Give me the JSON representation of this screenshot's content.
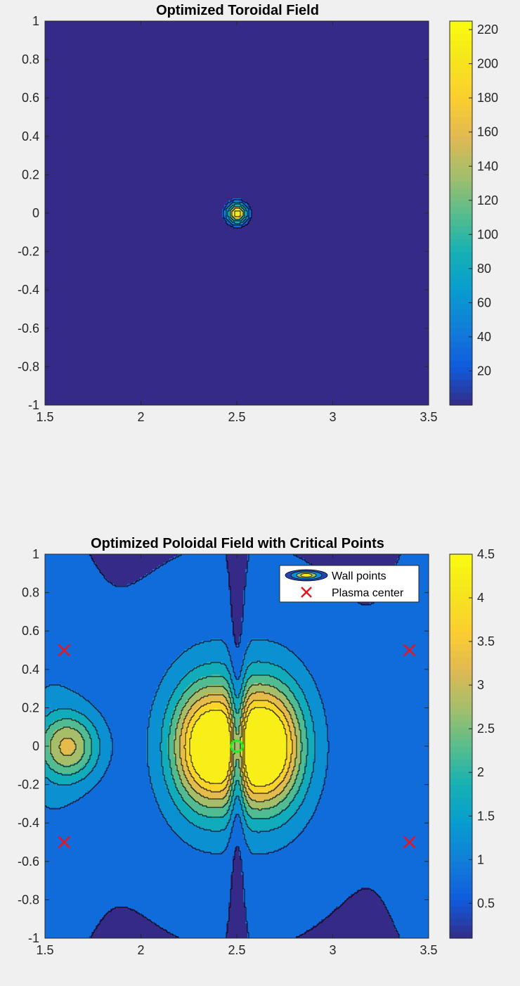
{
  "colors": {
    "background": "#f0f0f0",
    "plasma_marker": "#e8141e",
    "critical_point": "#22ee22",
    "contour_line": "#000000"
  },
  "chart_data": [
    {
      "type": "contour",
      "title": "Optimized Toroidal Field",
      "xlim": [
        1.5,
        3.5
      ],
      "ylim": [
        -1,
        1
      ],
      "x_ticks": [
        1.5,
        2,
        2.5,
        3,
        3.5
      ],
      "y_ticks": [
        -1,
        -0.8,
        -0.6,
        -0.4,
        -0.2,
        0,
        0.2,
        0.4,
        0.6,
        0.8,
        1
      ],
      "x_tick_labels": [
        "1.5",
        "2",
        "2.5",
        "3",
        "3.5"
      ],
      "y_tick_labels": [
        "-1",
        "-0.8",
        "-0.6",
        "-0.4",
        "-0.2",
        "0",
        "0.2",
        "0.4",
        "0.6",
        "0.8",
        "1"
      ],
      "colorbar": {
        "range": [
          0,
          225
        ],
        "ticks": [
          20,
          40,
          60,
          80,
          100,
          120,
          140,
          160,
          180,
          200,
          220
        ],
        "tick_labels": [
          "20",
          "40",
          "60",
          "80",
          "100",
          "120",
          "140",
          "160",
          "180",
          "200",
          "220"
        ]
      },
      "peak": {
        "x": 2.5,
        "y": 0,
        "value": 220
      },
      "colormap": "parula",
      "grid": false
    },
    {
      "type": "contour",
      "title": "Optimized Poloidal Field with Critical Points",
      "xlim": [
        1.5,
        3.5
      ],
      "ylim": [
        -1,
        1
      ],
      "x_ticks": [
        1.5,
        2,
        2.5,
        3,
        3.5
      ],
      "y_ticks": [
        -1,
        -0.8,
        -0.6,
        -0.4,
        -0.2,
        0,
        0.2,
        0.4,
        0.6,
        0.8,
        1
      ],
      "x_tick_labels": [
        "1.5",
        "2",
        "2.5",
        "3",
        "3.5"
      ],
      "y_tick_labels": [
        "-1",
        "-0.8",
        "-0.6",
        "-0.4",
        "-0.2",
        "0",
        "0.2",
        "0.4",
        "0.6",
        "0.8",
        "1"
      ],
      "colorbar": {
        "range": [
          0.1,
          4.5
        ],
        "ticks": [
          0.5,
          1,
          1.5,
          2,
          2.5,
          3,
          3.5,
          4,
          4.5
        ],
        "tick_labels": [
          "0.5",
          "1",
          "1.5",
          "2",
          "2.5",
          "3",
          "3.5",
          "4",
          "4.5"
        ]
      },
      "peaks": [
        {
          "x": 2.35,
          "y": 0,
          "value": 4.2
        },
        {
          "x": 2.65,
          "y": 0,
          "value": 4.5
        },
        {
          "x": 1.62,
          "y": 0,
          "value": 2.4
        }
      ],
      "plasma_centers": [
        {
          "x": 1.6,
          "y": 0.5
        },
        {
          "x": 3.4,
          "y": 0.5
        },
        {
          "x": 1.6,
          "y": -0.5
        },
        {
          "x": 3.4,
          "y": -0.5
        }
      ],
      "critical_points": [
        {
          "x": 2.5,
          "y": 0
        }
      ],
      "legend": {
        "position": "top-right",
        "entries": [
          "Wall points",
          "Plasma center"
        ]
      },
      "colormap": "parula",
      "grid": false
    }
  ]
}
